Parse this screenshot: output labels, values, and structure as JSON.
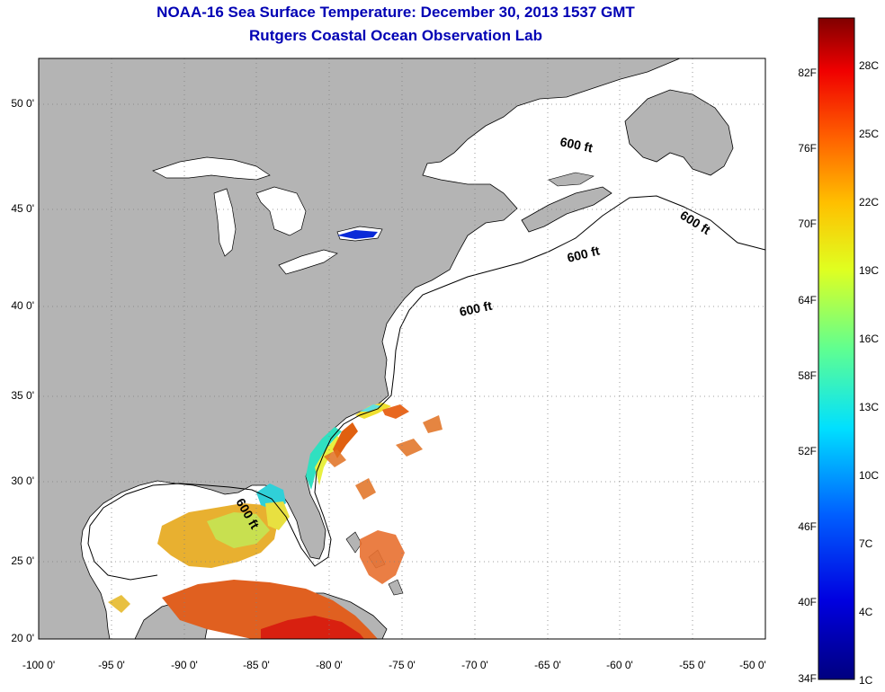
{
  "title": "NOAA-16 Sea Surface Temperature:  December 30, 2013 1537 GMT",
  "subtitle": "Rutgers Coastal Ocean Observation Lab",
  "lat_labels": [
    "50 0'",
    "45 0'",
    "40 0'",
    "35 0'",
    "30 0'",
    "25 0'",
    "20 0'"
  ],
  "lon_labels": [
    "-100 0'",
    "-95 0'",
    "-90 0'",
    "-85 0'",
    "-80 0'",
    "-75 0'",
    "-70 0'",
    "-65 0'",
    "-60 0'",
    "-55 0'",
    "-50 0'"
  ],
  "isobath_label": "600 ft",
  "colorbar": {
    "fahrenheit_labels": [
      "82F",
      "76F",
      "70F",
      "64F",
      "58F",
      "52F",
      "46F",
      "40F",
      "34F"
    ],
    "celsius_labels": [
      "28C",
      "25C",
      "22C",
      "19C",
      "16C",
      "13C",
      "10C",
      "7C",
      "4C",
      "1C"
    ]
  },
  "colors": {
    "title": "#0000b4",
    "land": "#b4b4b4",
    "ocean_no_data": "#ffffff",
    "gridlines": "#808080"
  }
}
